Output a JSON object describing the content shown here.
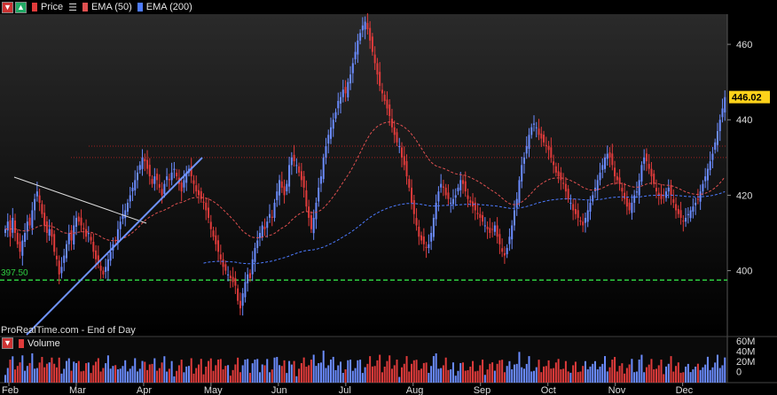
{
  "legend": {
    "price": "Price",
    "ema50": "EMA (50)",
    "ema200": "EMA (200)",
    "volume": "Volume"
  },
  "source_label": "ProRealTime.com - End of Day",
  "colors": {
    "background": "#000000",
    "up": "#6b8cff",
    "down": "#e03b3b",
    "ema50": "#e05050",
    "ema200": "#4d7bff",
    "support": "#2ecc40",
    "resistance": "#a02020",
    "last_price_bg": "#ffd21a"
  },
  "chart_data": [
    {
      "type": "candlestick",
      "title": "",
      "x": {
        "ticks": [
          "Feb",
          "Mar",
          "Apr",
          "May",
          "Jun",
          "Jul",
          "Aug",
          "Sep",
          "Oct",
          "Nov",
          "Dec"
        ]
      },
      "y": {
        "range": [
          383,
          468
        ],
        "ticks": [
          400,
          420,
          440,
          460
        ],
        "side": "right"
      },
      "last_price": 446.02,
      "support_level": {
        "value": 397.5,
        "label": "397.50"
      },
      "resistance_levels": [
        433,
        430
      ],
      "closes": [
        411,
        413,
        409,
        414,
        410,
        407,
        405,
        408,
        410,
        413,
        412,
        416,
        419,
        421,
        418,
        415,
        412,
        410,
        411,
        409,
        405,
        403,
        399,
        401,
        404,
        407,
        410,
        408,
        412,
        414,
        413,
        412,
        411,
        409,
        410,
        408,
        405,
        403,
        402,
        400,
        399,
        401,
        403,
        405,
        407,
        408,
        411,
        413,
        415,
        416,
        418,
        420,
        422,
        424,
        426,
        428,
        430,
        429,
        427,
        425,
        423,
        425,
        424,
        422,
        420,
        423,
        425,
        424,
        426,
        427,
        425,
        423,
        421,
        424,
        426,
        427,
        425,
        423,
        421,
        420,
        419,
        418,
        416,
        414,
        411,
        409,
        407,
        405,
        403,
        401,
        400,
        399,
        398,
        397,
        396,
        392,
        390,
        394,
        397,
        399,
        398,
        403,
        406,
        408,
        410,
        412,
        411,
        413,
        415,
        414,
        418,
        421,
        424,
        422,
        420,
        423,
        428,
        430,
        429,
        428,
        426,
        424,
        422,
        417,
        414,
        411,
        414,
        418,
        422,
        425,
        430,
        433,
        436,
        438,
        440,
        442,
        445,
        446,
        448,
        447,
        450,
        452,
        455,
        458,
        461,
        463,
        465,
        466,
        464,
        461,
        458,
        455,
        452,
        449,
        447,
        445,
        443,
        441,
        438,
        436,
        434,
        433,
        430,
        428,
        425,
        422,
        418,
        415,
        412,
        409,
        408,
        407,
        406,
        407,
        410,
        414,
        418,
        421,
        423,
        422,
        420,
        419,
        418,
        419,
        420,
        422,
        424,
        423,
        421,
        419,
        418,
        417,
        416,
        415,
        414,
        413,
        412,
        411,
        410,
        411,
        412,
        409,
        407,
        405,
        404,
        406,
        409,
        412,
        416,
        419,
        424,
        428,
        430,
        433,
        436,
        438,
        439,
        438,
        436,
        435,
        434,
        433,
        432,
        430,
        428,
        426,
        425,
        424,
        423,
        421,
        419,
        418,
        416,
        415,
        414,
        413,
        412,
        414,
        416,
        418,
        420,
        422,
        424,
        426,
        428,
        430,
        431,
        430,
        428,
        425,
        424,
        423,
        421,
        419,
        417,
        416,
        418,
        420,
        421,
        424,
        428,
        430,
        429,
        427,
        425,
        423,
        421,
        420,
        419,
        420,
        421,
        422,
        420,
        418,
        416,
        415,
        414,
        413,
        414,
        415,
        416,
        417,
        418,
        419,
        421,
        423,
        425,
        427,
        429,
        431,
        434,
        437,
        440,
        443,
        446
      ]
    },
    {
      "type": "bar",
      "title": "",
      "ylabel": "",
      "y": {
        "range": [
          0,
          65
        ],
        "ticks": [
          "60M",
          "40M",
          "20M",
          "0"
        ]
      }
    }
  ]
}
